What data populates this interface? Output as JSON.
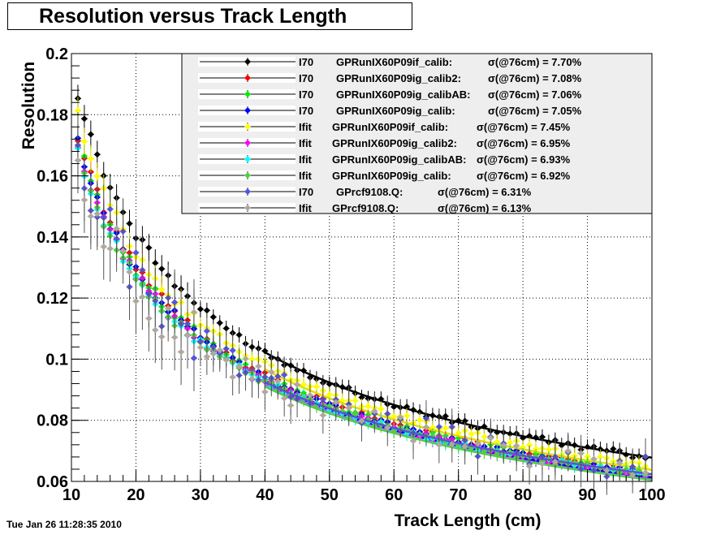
{
  "chart_data": {
    "type": "scatter",
    "title": "Resolution versus Track Length",
    "xlabel": "Track Length (cm)",
    "ylabel": "Resolution",
    "xlim": [
      10,
      100
    ],
    "ylim": [
      0.06,
      0.2
    ],
    "xticks": [
      "10",
      "20",
      "30",
      "40",
      "50",
      "60",
      "70",
      "80",
      "90",
      "100"
    ],
    "yticks": [
      "0.06",
      "0.08",
      "0.1",
      "0.12",
      "0.14",
      "0.16",
      "0.18",
      "0.2"
    ],
    "grid": true,
    "legend_position": "top-right",
    "timestamp": "Tue Jan 26 11:28:35 2010",
    "series": [
      {
        "method": "I70",
        "name": "GPRunIX60P09if_calib:",
        "sigma": "σ(@76cm) =  7.70%",
        "color": "#000000",
        "a": 0.1875,
        "b": 0.0085,
        "fit": true
      },
      {
        "method": "I70",
        "name": "GPRunIX60P09ig_calib2:",
        "sigma": "σ(@76cm) =  7.08%",
        "color": "#ff0000",
        "a": 0.172,
        "b": 0.0086,
        "fit": true
      },
      {
        "method": "I70",
        "name": "GPRunIX60P09ig_calibAB:",
        "sigma": "σ(@76cm) =  7.06%",
        "color": "#00ee00",
        "a": 0.1705,
        "b": 0.0088,
        "fit": true
      },
      {
        "method": "I70",
        "name": "GPRunIX60P09ig_calib:",
        "sigma": "σ(@76cm) =  7.05%",
        "color": "#0000ff",
        "a": 0.17,
        "b": 0.0089,
        "fit": true
      },
      {
        "method": "Ifit",
        "name": "GPRunIX60P09if_calib:",
        "sigma": "σ(@76cm) =  7.45%",
        "color": "#ffff00",
        "a": 0.179,
        "b": 0.0087,
        "fit": true
      },
      {
        "method": "Ifit",
        "name": "GPRunIX60P09ig_calib2:",
        "sigma": "σ(@76cm) =  6.95%",
        "color": "#ff00ff",
        "a": 0.168,
        "b": 0.009,
        "fit": true
      },
      {
        "method": "Ifit",
        "name": "GPRunIX60P09ig_calibAB:",
        "sigma": "σ(@76cm) =  6.93%",
        "color": "#00ffff",
        "a": 0.167,
        "b": 0.0092,
        "fit": true
      },
      {
        "method": "Ifit",
        "name": "GPRunIX60P09ig_calib:",
        "sigma": "σ(@76cm) =  6.92%",
        "color": "#55cc44",
        "a": 0.1665,
        "b": 0.0093,
        "fit": true
      },
      {
        "method": "I70",
        "name": "GPrcf9108.Q:",
        "sigma": "σ(@76cm) =  6.31%",
        "color": "#5555dd",
        "a": 0.164,
        "b": 0.012,
        "fit": true
      },
      {
        "method": "Ifit",
        "name": "GPrcf9108.Q:",
        "sigma": "σ(@76cm) =  6.13%",
        "color": "#b0a8a0",
        "a": 0.16,
        "b": 0.0125,
        "fit": false
      }
    ]
  }
}
